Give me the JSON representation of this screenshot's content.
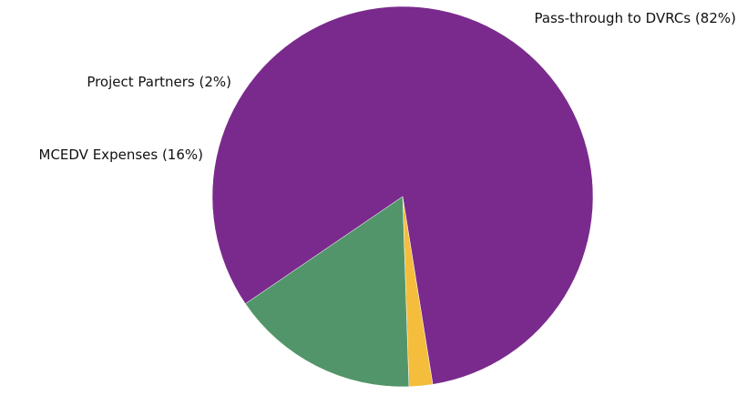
{
  "chart_data": {
    "type": "pie",
    "title": "",
    "slices": [
      {
        "label": "Pass-through to DVRCs (82%)",
        "value": 82,
        "color": "#7a2a8c"
      },
      {
        "label": "Project Partners (2%)",
        "value": 2,
        "color": "#f5bd3c"
      },
      {
        "label": "MCEDV Expenses (16%)",
        "value": 16,
        "color": "#53956a"
      }
    ],
    "legend": "none",
    "labels": "outside"
  }
}
